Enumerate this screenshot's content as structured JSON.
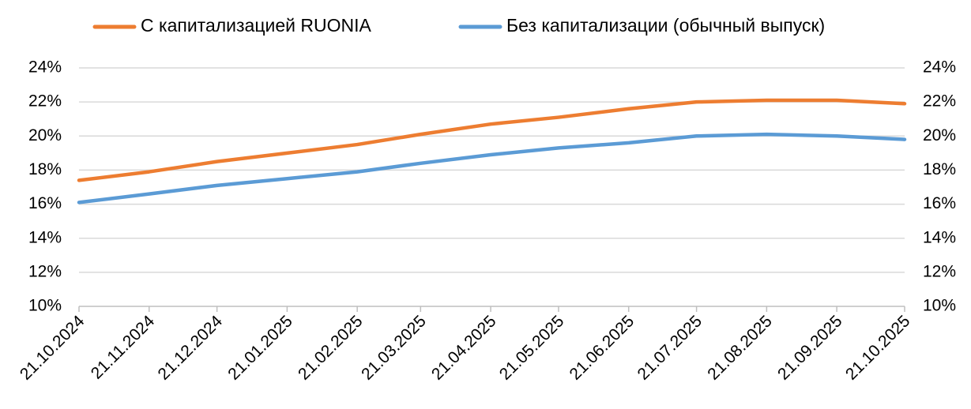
{
  "chart_data": {
    "type": "line",
    "x": [
      "21.10.2024",
      "21.11.2024",
      "21.12.2024",
      "21.01.2025",
      "21.02.2025",
      "21.03.2025",
      "21.04.2025",
      "21.05.2025",
      "21.06.2025",
      "21.07.2025",
      "21.08.2025",
      "21.09.2025",
      "21.10.2025"
    ],
    "series": [
      {
        "name": "С капитализацией RUONIA",
        "color": "#ed7d31",
        "values": [
          17.4,
          17.9,
          18.5,
          19.0,
          19.5,
          20.1,
          20.7,
          21.1,
          21.6,
          22.0,
          22.1,
          22.1,
          21.9
        ]
      },
      {
        "name": "Без капитализации (обычный выпуск)",
        "color": "#5b9bd5",
        "values": [
          16.1,
          16.6,
          17.1,
          17.5,
          17.9,
          18.4,
          18.9,
          19.3,
          19.6,
          20.0,
          20.1,
          20.0,
          19.8
        ]
      }
    ],
    "ylim": [
      10,
      24
    ],
    "yticks": [
      {
        "value": 10,
        "label": "10%"
      },
      {
        "value": 12,
        "label": "12%"
      },
      {
        "value": 14,
        "label": "14%"
      },
      {
        "value": 16,
        "label": "16%"
      },
      {
        "value": 18,
        "label": "18%"
      },
      {
        "value": 20,
        "label": "20%"
      },
      {
        "value": 22,
        "label": "22%"
      },
      {
        "value": 24,
        "label": "24%"
      }
    ],
    "y2lim": [
      10,
      24
    ],
    "y2ticks": [
      {
        "value": 10,
        "label": "10%"
      },
      {
        "value": 12,
        "label": "12%"
      },
      {
        "value": 14,
        "label": "14%"
      },
      {
        "value": 16,
        "label": "16%"
      },
      {
        "value": 18,
        "label": "18%"
      },
      {
        "value": 20,
        "label": "20%"
      },
      {
        "value": 22,
        "label": "22%"
      },
      {
        "value": 24,
        "label": "24%"
      }
    ],
    "grid": true,
    "legend": "top"
  }
}
